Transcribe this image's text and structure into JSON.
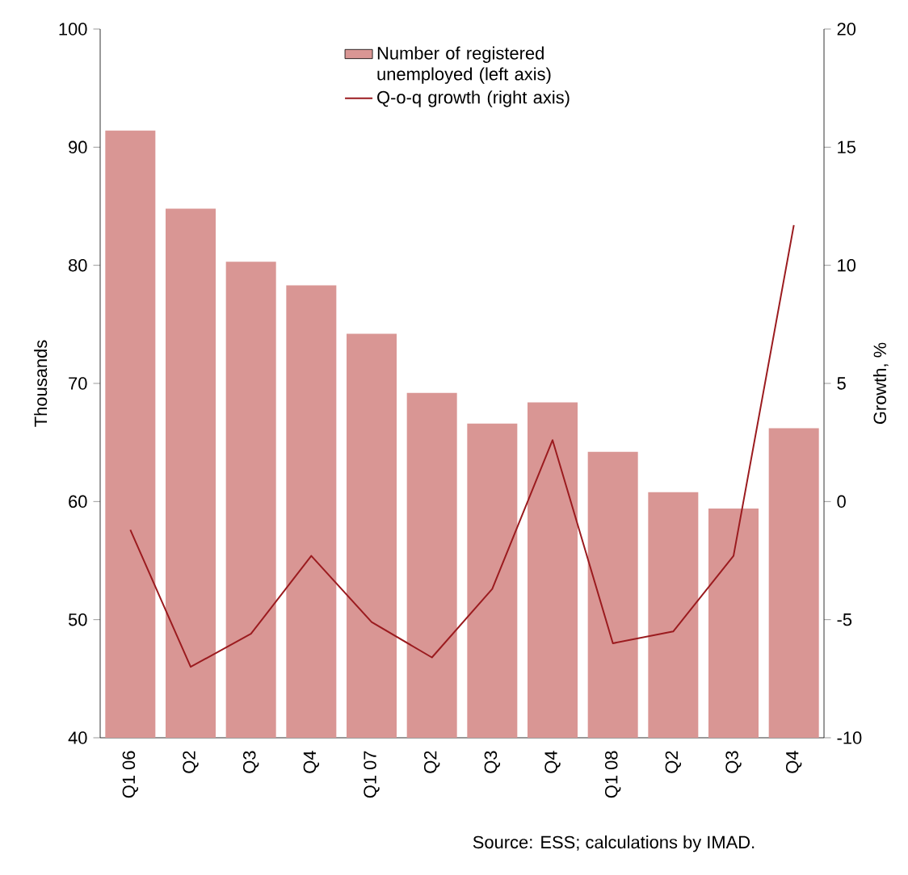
{
  "chart_data": {
    "type": "bar",
    "ylabel": "Thousands",
    "y2label": "Growth, %",
    "categories": [
      "Q1 06",
      "Q2",
      "Q3",
      "Q4",
      "Q1 07",
      "Q2",
      "Q3",
      "Q4",
      "Q1 08",
      "Q2",
      "Q3",
      "Q4"
    ],
    "series": [
      {
        "name": "Number of registered unemployed (left axis)",
        "color": "#d99694",
        "values": [
          91.4,
          84.8,
          80.3,
          78.3,
          74.2,
          69.2,
          66.6,
          68.4,
          64.2,
          60.8,
          59.4,
          66.2
        ]
      },
      {
        "name": "Q-o-q growth (right axis)",
        "type": "line",
        "axis": "y2",
        "color": "#9b1b1f",
        "values": [
          -1.2,
          -7.0,
          -5.6,
          -2.3,
          -5.1,
          -6.6,
          -3.7,
          2.6,
          -6.0,
          -5.5,
          -2.3,
          11.7
        ]
      }
    ],
    "ylim": [
      40,
      100
    ],
    "yticks": [
      40,
      50,
      60,
      70,
      80,
      90,
      100
    ],
    "y2lim": [
      -10,
      20
    ],
    "y2ticks": [
      -10,
      -5,
      0,
      5,
      10,
      15,
      20
    ],
    "legend": "top",
    "grid": false,
    "annotations": [
      "Source: ESS; calculations by IMAD."
    ]
  }
}
